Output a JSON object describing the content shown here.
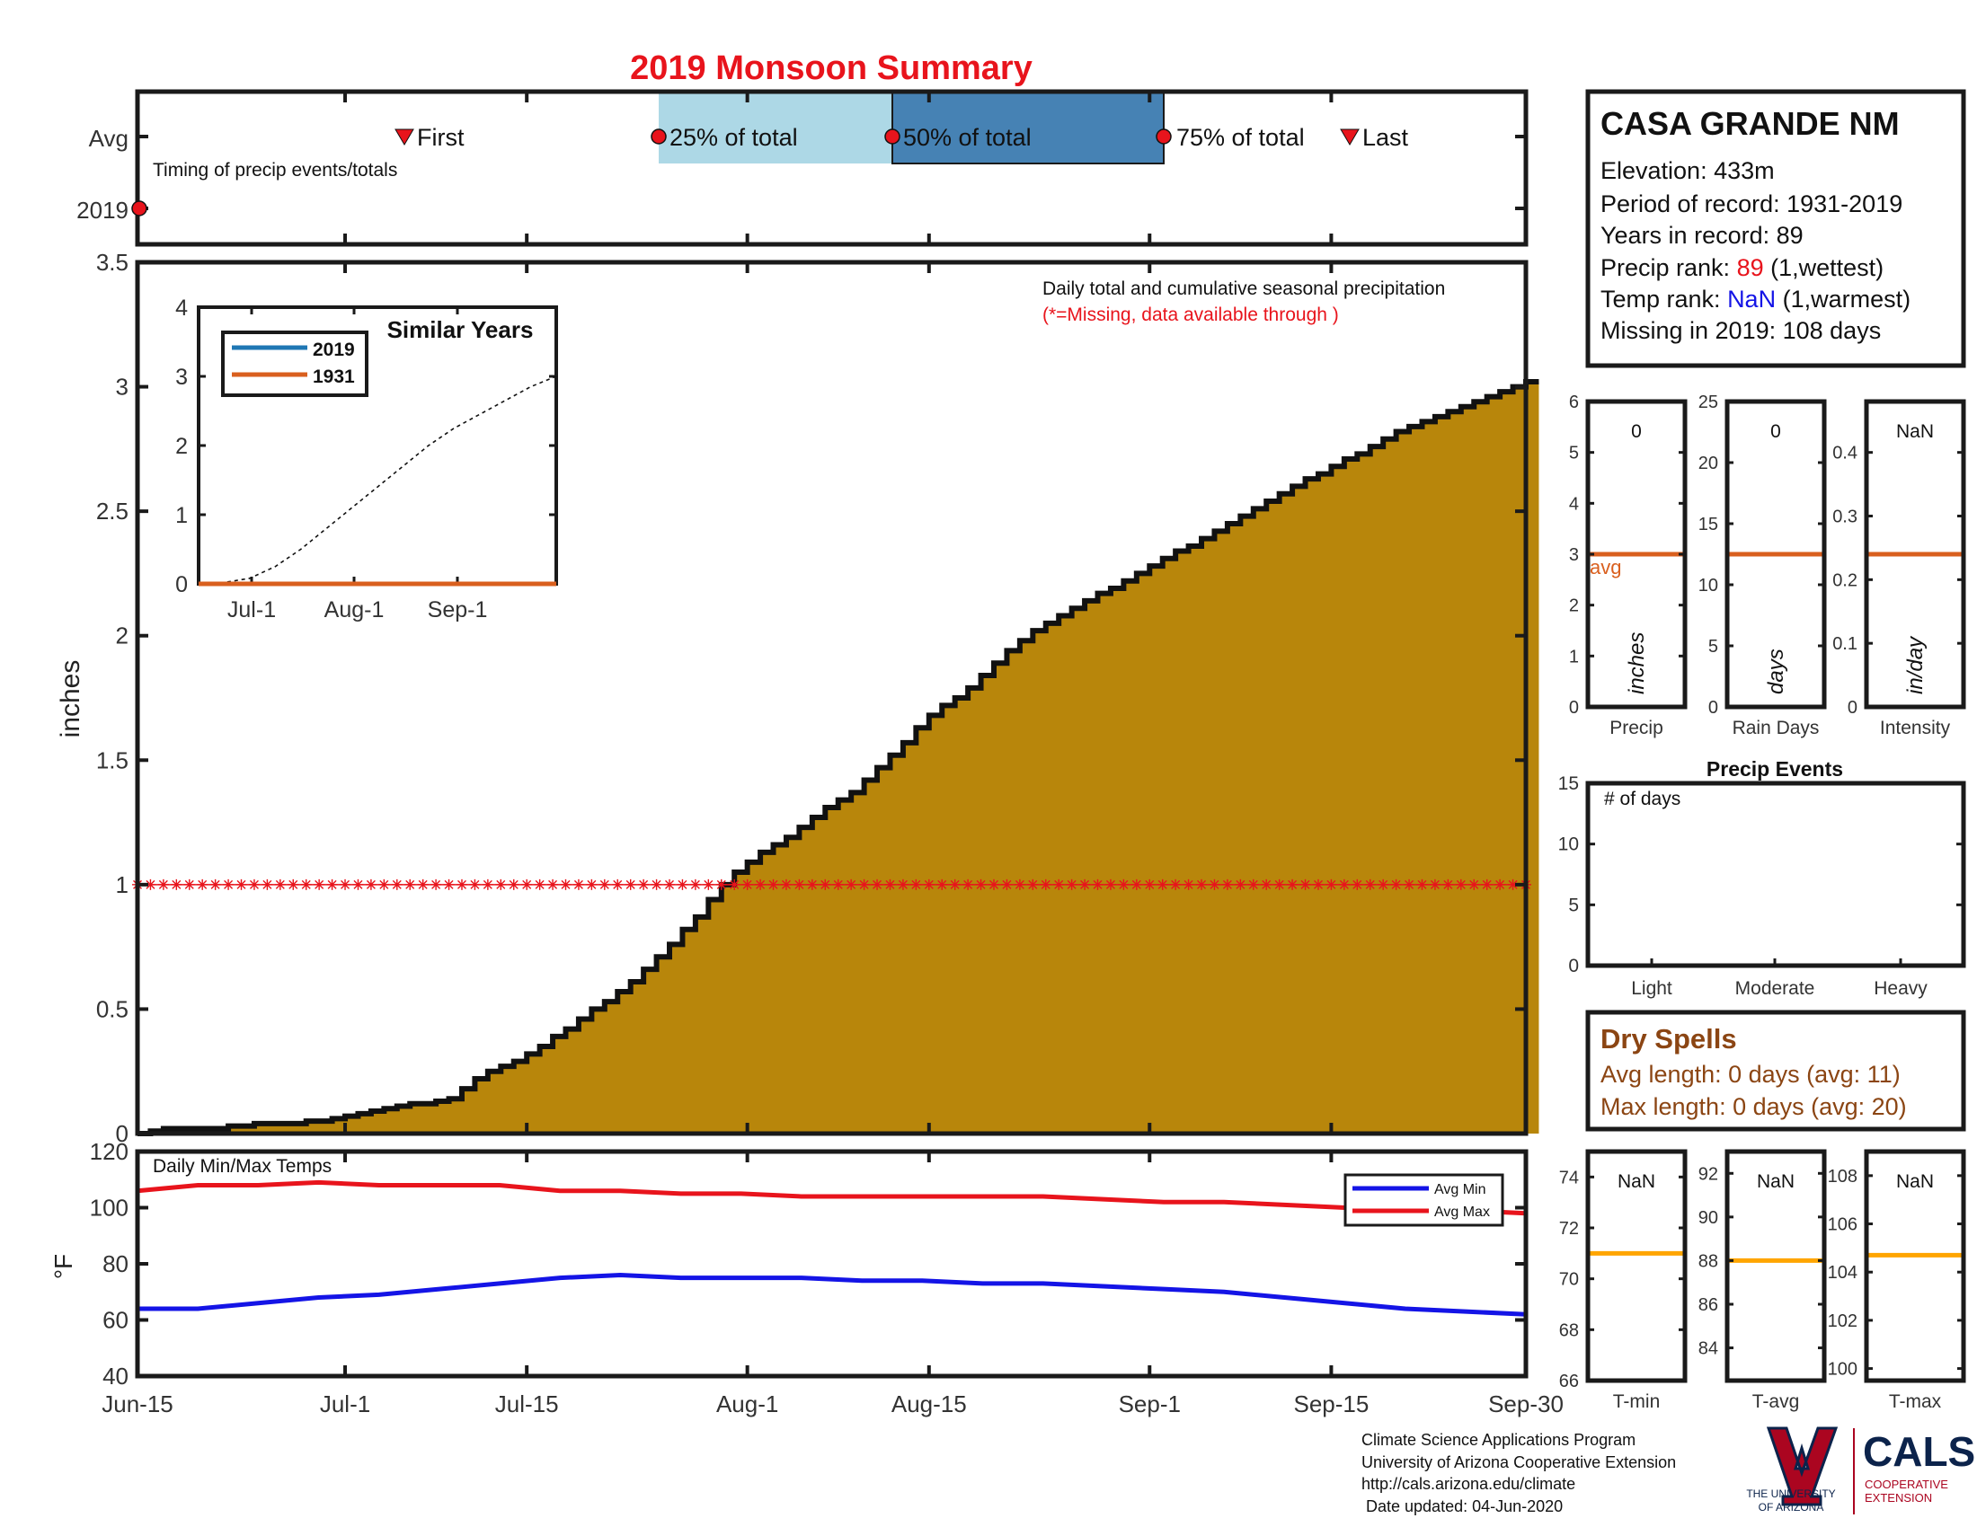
{
  "title": "2019 Monsoon Summary",
  "colors": {
    "title": "#e8141c",
    "cumulative_fill": "#b8860b",
    "series_2019": "#1f77b4",
    "series_1931": "#d95f1e",
    "avg_min": "#1414e6",
    "avg_max": "#e8141c",
    "missing": "#e8141c",
    "avg_line": "#d95f1e",
    "temp_avg_line": "#ffa500",
    "timing_25": "#add8e6",
    "timing_50": "#4682b4",
    "dry_spells": "#8b4513",
    "ua_red": "#ab0520",
    "ua_navy": "#0c234b"
  },
  "station": {
    "name": "CASA GRANDE NM",
    "elevation": "Elevation: 433m",
    "period": "Period of record: 1931-2019",
    "years": "Years in record: 89",
    "precip_rank_label": "Precip rank: ",
    "precip_rank_value": "89",
    "precip_rank_suffix": " (1,wettest)",
    "temp_rank_label": "Temp rank: ",
    "temp_rank_value": "NaN",
    "temp_rank_suffix": " (1,warmest)",
    "missing": "Missing in 2019: 108 days"
  },
  "timing": {
    "row_avg": "Avg",
    "row_2019": "2019",
    "caption": "Timing of precip events/totals",
    "first": "First",
    "last": "Last",
    "p25": "25% of total",
    "p50": "50% of total",
    "p75": "75% of total",
    "first_day": 22,
    "p25_day": 46,
    "p50_day": 58,
    "p75_day": 72,
    "last_day": 82,
    "marker_2019_day": 0
  },
  "chart_data": [
    {
      "type": "area",
      "name": "Daily total and cumulative seasonal precipitation",
      "annotation": "Daily total and cumulative seasonal precipitation",
      "missing_note": "(*=Missing, data available through )",
      "ylabel": "inches",
      "ylim": [
        0,
        3.5
      ],
      "yticks": [
        0,
        0.5,
        1,
        1.5,
        2,
        2.5,
        3,
        3.5
      ],
      "ytick_labels": [
        "0",
        "0.5",
        "1",
        "1.5",
        "2",
        "2.5",
        "3",
        "3.5"
      ],
      "xlim": [
        "Jun-15",
        "Sep-30"
      ],
      "x_ticks": [
        {
          "day": 0,
          "label": "Jun-15"
        },
        {
          "day": 16,
          "label": "Jul-1"
        },
        {
          "day": 30,
          "label": "Jul-15"
        },
        {
          "day": 47,
          "label": "Aug-1"
        },
        {
          "day": 61,
          "label": "Aug-15"
        },
        {
          "day": 78,
          "label": "Sep-1"
        },
        {
          "day": 92,
          "label": "Sep-15"
        },
        {
          "day": 107,
          "label": "Sep-30"
        }
      ],
      "cumulative_inches": [
        0.0,
        0.01,
        0.02,
        0.02,
        0.02,
        0.02,
        0.02,
        0.03,
        0.03,
        0.04,
        0.04,
        0.04,
        0.04,
        0.05,
        0.05,
        0.06,
        0.07,
        0.08,
        0.09,
        0.1,
        0.11,
        0.12,
        0.12,
        0.13,
        0.14,
        0.18,
        0.22,
        0.25,
        0.27,
        0.29,
        0.32,
        0.35,
        0.39,
        0.42,
        0.46,
        0.5,
        0.53,
        0.57,
        0.61,
        0.66,
        0.71,
        0.76,
        0.82,
        0.87,
        0.94,
        1.0,
        1.05,
        1.09,
        1.13,
        1.16,
        1.19,
        1.23,
        1.27,
        1.31,
        1.34,
        1.37,
        1.42,
        1.47,
        1.52,
        1.57,
        1.63,
        1.68,
        1.72,
        1.75,
        1.79,
        1.84,
        1.89,
        1.94,
        1.98,
        2.02,
        2.05,
        2.08,
        2.11,
        2.14,
        2.17,
        2.19,
        2.22,
        2.25,
        2.28,
        2.31,
        2.34,
        2.36,
        2.39,
        2.42,
        2.45,
        2.48,
        2.51,
        2.54,
        2.57,
        2.6,
        2.63,
        2.65,
        2.68,
        2.71,
        2.73,
        2.76,
        2.79,
        2.82,
        2.84,
        2.86,
        2.88,
        2.9,
        2.92,
        2.94,
        2.96,
        2.98,
        3.0,
        3.02
      ],
      "missing_value": 1,
      "inset": {
        "type": "line",
        "title": "Similar Years",
        "ylim": [
          0,
          4
        ],
        "yticks": [
          "0",
          "1",
          "2",
          "3",
          "4"
        ],
        "xticks": [
          "Jul-1",
          "Aug-1",
          "Sep-1"
        ],
        "series": [
          {
            "name": "2019",
            "values": [
              0,
              0,
              0,
              0
            ]
          },
          {
            "name": "1931",
            "values": [
              0,
              0,
              0,
              0
            ]
          }
        ],
        "climatology": [
          0,
          0.02,
          0.08,
          0.25,
          0.5,
          0.8,
          1.1,
          1.4,
          1.7,
          2.0,
          2.25,
          2.45,
          2.65,
          2.85,
          3.0
        ]
      }
    },
    {
      "type": "line",
      "name": "Daily Min/Max Temps",
      "ylabel": "°F",
      "ylim": [
        40,
        120
      ],
      "yticks": [
        "40",
        "60",
        "80",
        "100",
        "120"
      ],
      "series": [
        {
          "name": "Avg Min",
          "values": [
            64,
            64,
            66,
            68,
            69,
            71,
            73,
            75,
            76,
            75,
            75,
            75,
            74,
            74,
            73,
            73,
            72,
            71,
            70,
            68,
            66,
            64,
            63,
            62
          ]
        },
        {
          "name": "Avg Max",
          "values": [
            106,
            108,
            108,
            109,
            108,
            108,
            108,
            106,
            106,
            105,
            105,
            104,
            104,
            104,
            104,
            104,
            103,
            102,
            102,
            101,
            100,
            100,
            99,
            98
          ]
        }
      ]
    },
    {
      "type": "bar",
      "name": "Precip",
      "value_label": "0",
      "unit": "inches",
      "avg_label": "avg",
      "avg": 3.0,
      "ylim": [
        0,
        6
      ],
      "yticks": [
        "0",
        "1",
        "2",
        "3",
        "4",
        "5",
        "6"
      ]
    },
    {
      "type": "bar",
      "name": "Rain Days",
      "value_label": "0",
      "unit": "days",
      "avg": 12.5,
      "ylim": [
        0,
        25
      ],
      "yticks": [
        "0",
        "5",
        "10",
        "15",
        "20",
        "25"
      ]
    },
    {
      "type": "bar",
      "name": "Intensity",
      "value_label": "NaN",
      "unit": "in/day",
      "avg": 0.24,
      "ylim": [
        0,
        0.48
      ],
      "yticks": [
        "0",
        "0.1",
        "0.2",
        "0.3",
        "0.4"
      ]
    },
    {
      "type": "bar",
      "title": "Precip Events",
      "ylabel_inner": "# of days",
      "categories": [
        "Light",
        "Moderate",
        "Heavy"
      ],
      "values": [
        0,
        0,
        0
      ],
      "ylim": [
        0,
        15
      ],
      "yticks": [
        "0",
        "5",
        "10",
        "15"
      ]
    },
    {
      "type": "bar",
      "name": "T-min",
      "value_label": "NaN",
      "avg": 71,
      "ylim": [
        66,
        75
      ],
      "yticks": [
        "66",
        "68",
        "70",
        "72",
        "74"
      ]
    },
    {
      "type": "bar",
      "name": "T-avg",
      "value_label": "NaN",
      "avg": 88,
      "ylim": [
        82.5,
        93
      ],
      "yticks": [
        "84",
        "86",
        "88",
        "90",
        "92"
      ]
    },
    {
      "type": "bar",
      "name": "T-max",
      "value_label": "NaN",
      "avg": 104.7,
      "ylim": [
        99.5,
        109
      ],
      "yticks": [
        "100",
        "102",
        "104",
        "106",
        "108"
      ]
    }
  ],
  "temps_panel": {
    "label": "Daily Min/Max Temps",
    "legend_min": "Avg Min",
    "legend_max": "Avg Max"
  },
  "dry_spells": {
    "title": "Dry Spells",
    "avg_length": "Avg length: 0 days (avg: 11)",
    "max_length": "Max length: 0 days (avg: 20)"
  },
  "footer": {
    "line1": "Climate Science Applications Program",
    "line2": "University of Arizona Cooperative Extension",
    "line3": "http://cals.arizona.edu/climate",
    "line4": " Date updated: 04-Jun-2020"
  },
  "logos": {
    "ua_line1": "THE UNIVERSITY",
    "ua_line2": "OF ARIZONA",
    "cals": "CALS",
    "cals_sub1": "COOPERATIVE",
    "cals_sub2": "EXTENSION"
  }
}
